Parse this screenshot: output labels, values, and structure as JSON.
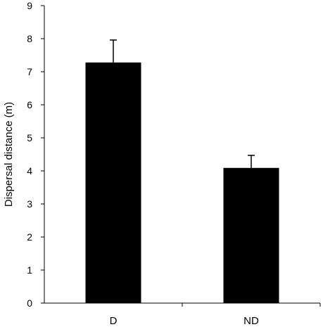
{
  "chart_data": {
    "type": "bar",
    "title": "",
    "xlabel": "",
    "ylabel": "Dispersal distance (m)",
    "categories": [
      "D",
      "ND"
    ],
    "values": [
      7.28,
      4.09
    ],
    "error_upper": [
      0.68,
      0.38
    ],
    "ylim": [
      0,
      9
    ],
    "yticks": [
      "0",
      "1",
      "2",
      "3",
      "4",
      "5",
      "6",
      "7",
      "8",
      "9"
    ],
    "grid": false,
    "legend": "none",
    "bar_color": "#000000"
  }
}
